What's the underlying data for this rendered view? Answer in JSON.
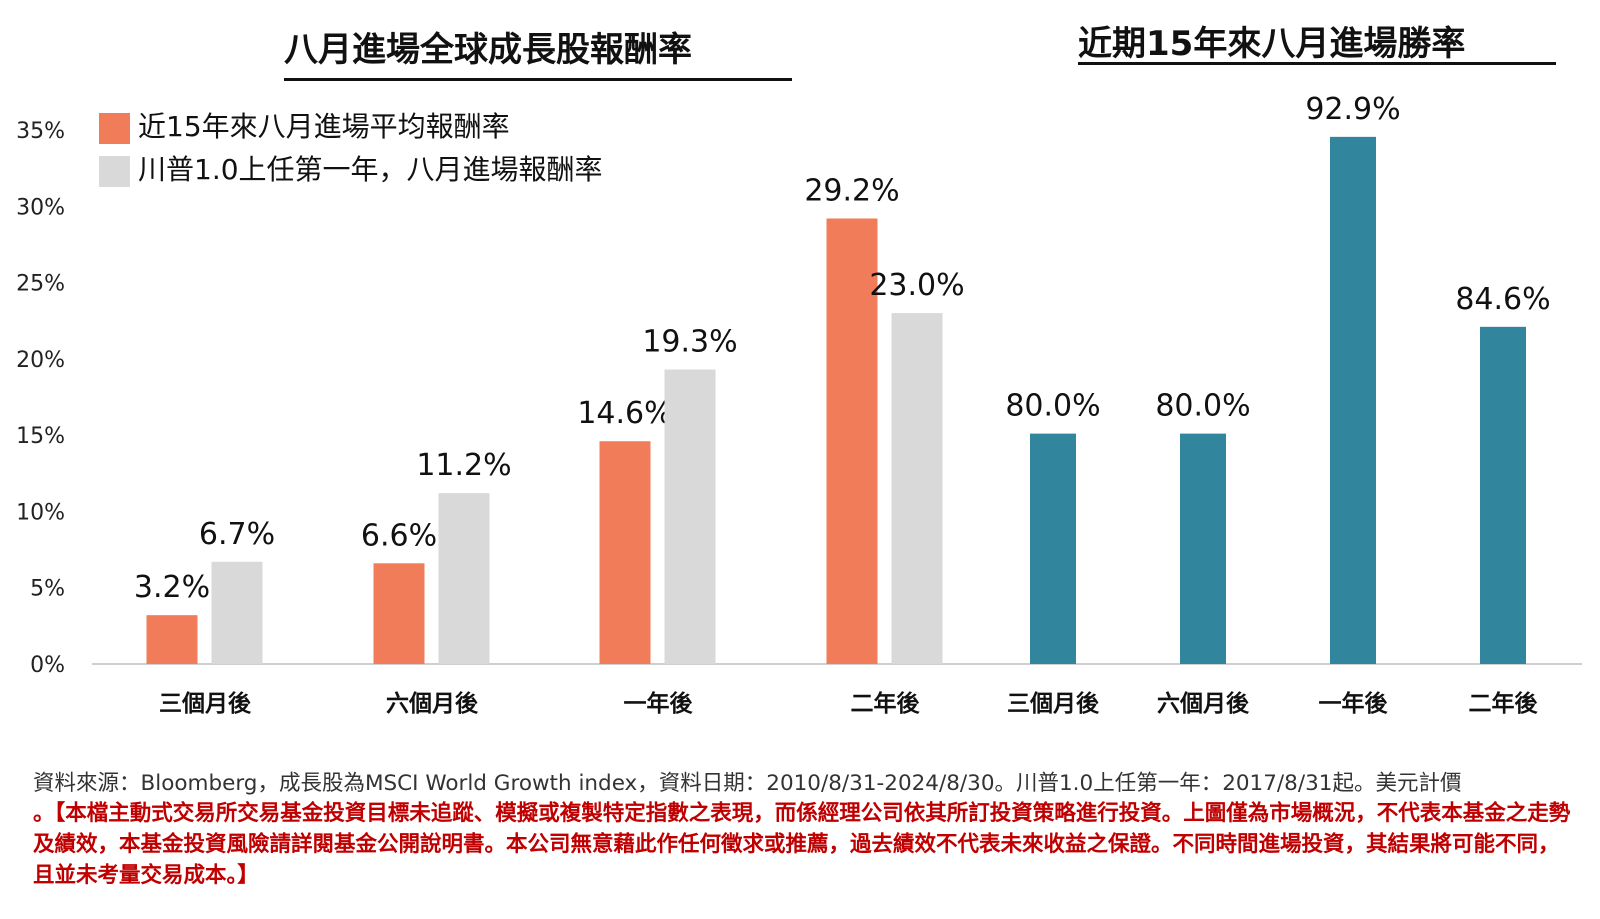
{
  "left_title": "八月進場全球成長股報酬率",
  "right_title": "近期15年來八月進場勝率",
  "legend": {
    "avg_label": "近15年來八月進場平均報酬率",
    "trump_label": "川普1.0上任第一年，八月進場報酬率"
  },
  "colors": {
    "avg": "#f07c5a",
    "trump": "#d9d9d9",
    "win_rate": "#31859c"
  },
  "chart_data": {
    "type": "bar",
    "y_ticks": [
      "0%",
      "5%",
      "10%",
      "15%",
      "20%",
      "25%",
      "30%",
      "35%"
    ],
    "ylim": [
      0,
      35
    ],
    "grid": false,
    "legend_position": "top-left",
    "returns": {
      "categories": [
        "三個月後",
        "六個月後",
        "一年後",
        "二年後"
      ],
      "series": [
        {
          "name": "近15年來八月進場平均報酬率",
          "values": [
            3.2,
            6.6,
            14.6,
            29.2
          ],
          "labels": [
            "3.2%",
            "6.6%",
            "14.6%",
            "29.2%"
          ]
        },
        {
          "name": "川普1.0上任第一年，八月進場報酬率",
          "values": [
            6.7,
            11.2,
            19.3,
            23.0
          ],
          "labels": [
            "6.7%",
            "11.2%",
            "19.3%",
            "23.0%"
          ]
        }
      ]
    },
    "win_rate": {
      "categories": [
        "三個月後",
        "六個月後",
        "一年後",
        "二年後"
      ],
      "values": [
        80.0,
        80.0,
        92.9,
        84.6
      ],
      "labels": [
        "80.0%",
        "80.0%",
        "92.9%",
        "84.6%"
      ]
    }
  },
  "footnote": {
    "source": "資料來源：Bloomberg，成長股為MSCI World Growth index，資料日期：2010/8/31-2024/8/30。川普1.0上任第一年：2017/8/31起。美元計價",
    "disclaimer": "。【本檔主動式交易所交易基金投資目標未追蹤、模擬或複製特定指數之表現，而係經理公司依其所訂投資策略進行投資。上圖僅為市場概況，不代表本基金之走勢及績效，本基金投資風險請詳閱基金公開說明書。本公司無意藉此作任何徵求或推薦，過去績效不代表未來收益之保證。不同時間進場投資，其結果將可能不同，且並未考量交易成本。】"
  }
}
